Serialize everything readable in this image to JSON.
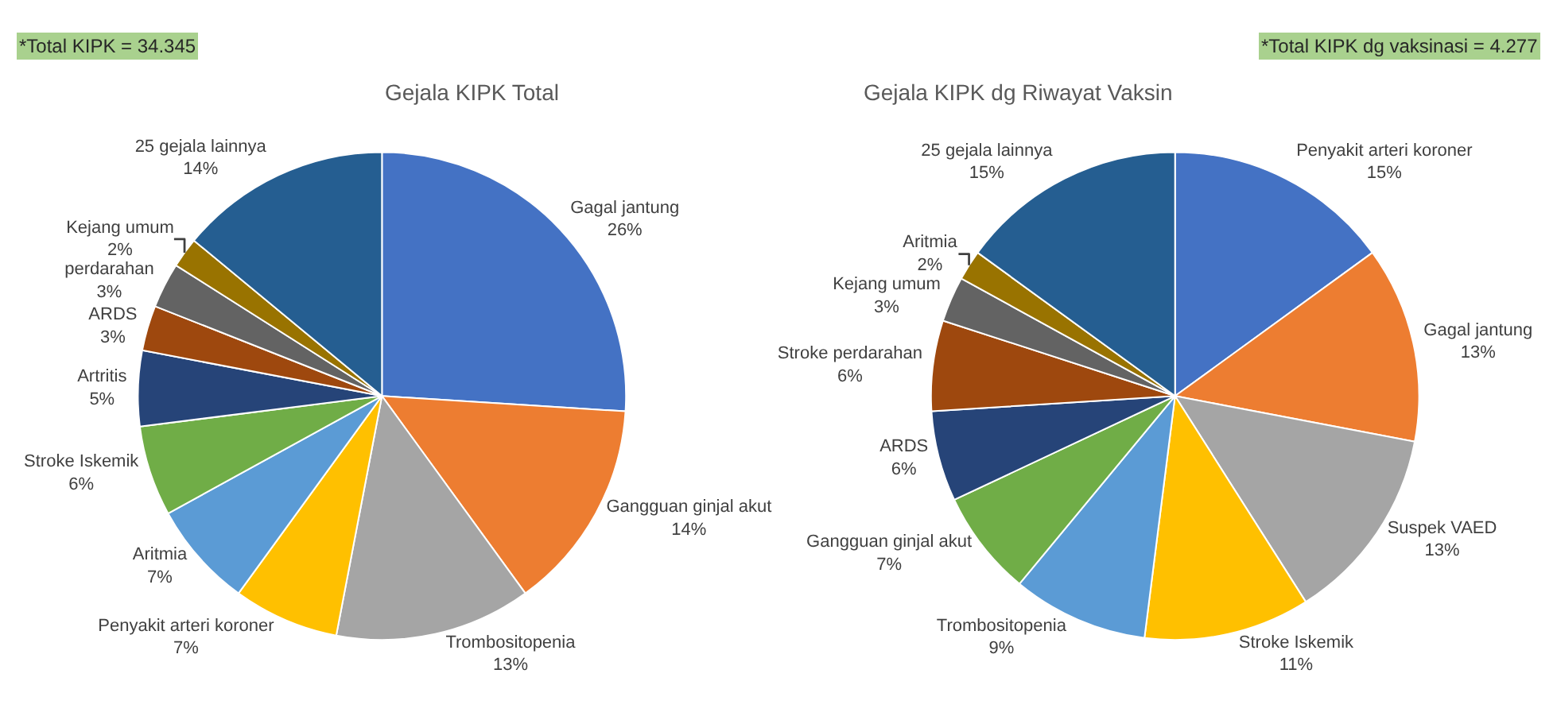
{
  "chart_data": [
    {
      "type": "pie",
      "title": "Gejala KIPK Total",
      "annotations": [
        "*Total KIPK = 34.345"
      ],
      "categories": [
        "Gagal jantung",
        "Gangguan ginjal akut",
        "Trombositopenia",
        "Penyakit arteri koroner",
        "Aritmia",
        "Stroke Iskemik",
        "Artritis",
        "ARDS",
        "perdarahan",
        "Kejang umum",
        "25 gejala lainnya"
      ],
      "values": [
        26,
        14,
        13,
        7,
        7,
        6,
        5,
        3,
        3,
        2,
        14
      ],
      "value_labels": [
        "26%",
        "14%",
        "13%",
        "7%",
        "7%",
        "6%",
        "5%",
        "3%",
        "3%",
        "2%",
        "14%"
      ],
      "colors": [
        "#4472c4",
        "#ed7d31",
        "#a5a5a5",
        "#ffc000",
        "#5b9bd5",
        "#70ad47",
        "#264478",
        "#9e480e",
        "#636363",
        "#997300",
        "#255e91"
      ]
    },
    {
      "type": "pie",
      "title": "Gejala KIPK dg Riwayat Vaksin",
      "annotations": [
        "*Total KIPK dg vaksinasi = 4.277"
      ],
      "categories": [
        "Penyakit arteri koroner",
        "Gagal jantung",
        "Suspek VAED",
        "Stroke Iskemik",
        "Trombositopenia",
        "Gangguan ginjal akut",
        "ARDS",
        "Stroke perdarahan",
        "Kejang umum",
        "Aritmia",
        "25 gejala lainnya"
      ],
      "values": [
        15,
        13,
        13,
        11,
        9,
        7,
        6,
        6,
        3,
        2,
        15
      ],
      "value_labels": [
        "15%",
        "13%",
        "13%",
        "11%",
        "9%",
        "7%",
        "6%",
        "6%",
        "3%",
        "2%",
        "15%"
      ],
      "colors": [
        "#4472c4",
        "#ed7d31",
        "#a5a5a5",
        "#ffc000",
        "#5b9bd5",
        "#70ad47",
        "#264478",
        "#9e480e",
        "#636363",
        "#997300",
        "#255e91"
      ]
    }
  ]
}
